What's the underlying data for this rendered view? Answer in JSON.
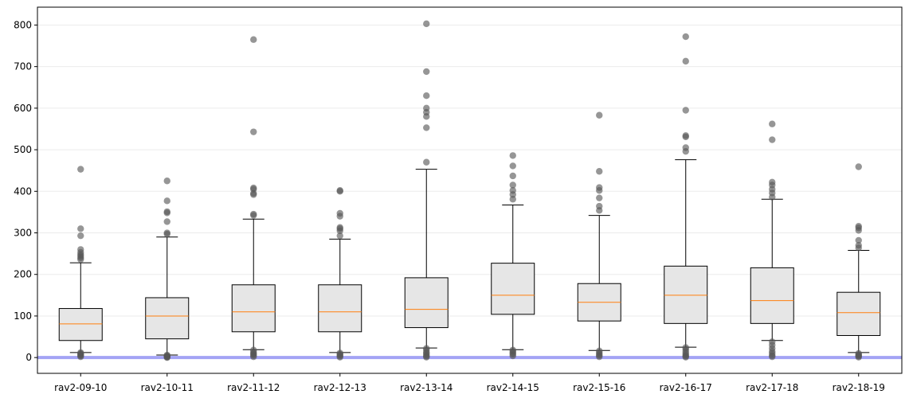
{
  "chart_data": {
    "type": "boxplot",
    "title": "",
    "xlabel": "",
    "ylabel": "",
    "ylim": [
      -38,
      843
    ],
    "yticks": [
      0,
      100,
      200,
      300,
      400,
      500,
      600,
      700,
      800
    ],
    "grid": "horizontal",
    "reference_line": {
      "y": 0,
      "color": "#a3a3f5"
    },
    "colors": {
      "box_fill": "#e6e6e6",
      "median": "#ff7f0e",
      "outlier": "#555555"
    },
    "categories": [
      "rav2-09-10",
      "rav2-10-11",
      "rav2-11-12",
      "rav2-12-13",
      "rav2-13-14",
      "rav2-14-15",
      "rav2-15-16",
      "rav2-16-17",
      "rav2-17-18",
      "rav2-18-19"
    ],
    "boxes": [
      {
        "label": "rav2-09-10",
        "whislo": 12,
        "q1": 41,
        "med": 81,
        "q3": 118,
        "whishi": 228,
        "fliers": [
          453,
          310,
          293,
          260,
          253,
          248,
          244,
          240,
          236,
          12,
          10,
          8,
          6,
          4,
          2
        ]
      },
      {
        "label": "rav2-10-11",
        "whislo": 6,
        "q1": 45,
        "med": 100,
        "q3": 144,
        "whishi": 290,
        "fliers": [
          425,
          377,
          351,
          348,
          327,
          300,
          297,
          6,
          4,
          3,
          2,
          1,
          0
        ]
      },
      {
        "label": "rav2-11-12",
        "whislo": 19,
        "q1": 62,
        "med": 110,
        "q3": 175,
        "whishi": 333,
        "fliers": [
          765,
          543,
          408,
          405,
          395,
          392,
          345,
          342,
          18,
          14,
          10,
          8,
          5,
          2
        ]
      },
      {
        "label": "rav2-12-13",
        "whislo": 12,
        "q1": 62,
        "med": 110,
        "q3": 175,
        "whishi": 285,
        "fliers": [
          402,
          400,
          347,
          340,
          313,
          310,
          305,
          293,
          11,
          8,
          6,
          3,
          1
        ]
      },
      {
        "label": "rav2-13-14",
        "whislo": 23,
        "q1": 72,
        "med": 116,
        "q3": 192,
        "whishi": 453,
        "fliers": [
          803,
          688,
          630,
          600,
          590,
          580,
          553,
          470,
          22,
          18,
          13,
          10,
          6,
          3,
          1
        ]
      },
      {
        "label": "rav2-14-15",
        "whislo": 19,
        "q1": 104,
        "med": 150,
        "q3": 227,
        "whishi": 367,
        "fliers": [
          486,
          461,
          437,
          415,
          402,
          392,
          381,
          18,
          15,
          11,
          8,
          4
        ]
      },
      {
        "label": "rav2-15-16",
        "whislo": 17,
        "q1": 88,
        "med": 133,
        "q3": 178,
        "whishi": 342,
        "fliers": [
          583,
          448,
          409,
          402,
          384,
          364,
          354,
          16,
          12,
          8,
          5,
          2
        ]
      },
      {
        "label": "rav2-16-17",
        "whislo": 25,
        "q1": 82,
        "med": 150,
        "q3": 220,
        "whishi": 476,
        "fliers": [
          772,
          713,
          595,
          534,
          531,
          505,
          496,
          24,
          20,
          15,
          10,
          6,
          3,
          1
        ]
      },
      {
        "label": "rav2-17-18",
        "whislo": 41,
        "q1": 82,
        "med": 137,
        "q3": 216,
        "whishi": 381,
        "fliers": [
          562,
          524,
          422,
          415,
          405,
          396,
          386,
          38,
          30,
          22,
          15,
          10,
          5,
          2
        ]
      },
      {
        "label": "rav2-18-19",
        "whislo": 12,
        "q1": 53,
        "med": 108,
        "q3": 157,
        "whishi": 258,
        "fliers": [
          459,
          316,
          312,
          306,
          282,
          270,
          264,
          10,
          7,
          5,
          3,
          1
        ]
      }
    ]
  }
}
